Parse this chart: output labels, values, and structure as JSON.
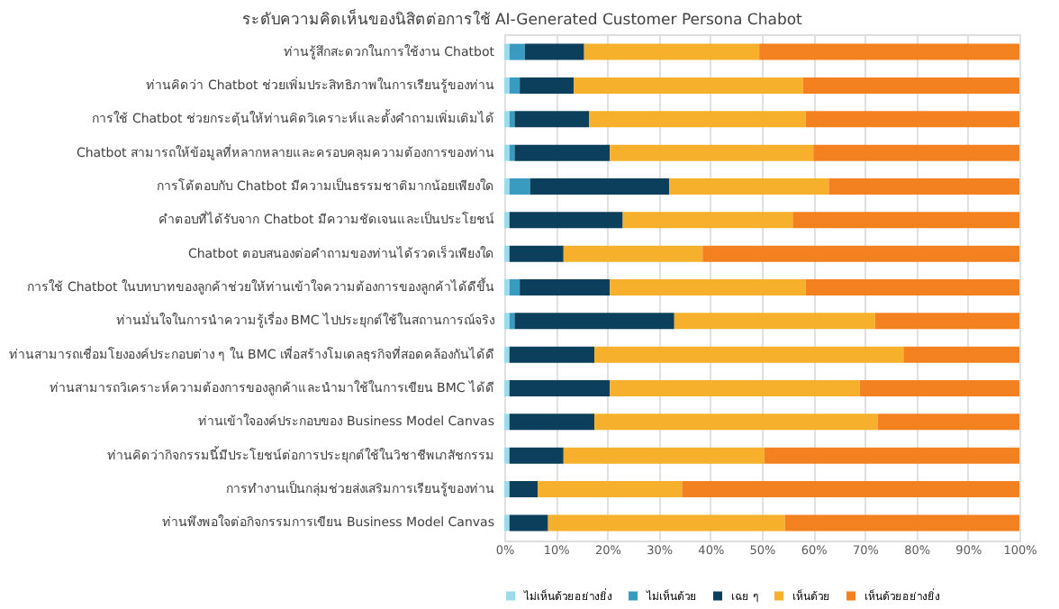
{
  "chart_data": {
    "type": "bar",
    "orientation": "horizontal",
    "stacked": true,
    "title": "ระดับความคิดเห็นของนิสิตต่อการใช้ AI-Generated Customer Persona Chabot",
    "categories": [
      "ท่านรู้สึกสะดวกในการใช้งาน Chatbot",
      "ท่านคิดว่า Chatbot ช่วยเพิ่มประสิทธิภาพในการเรียนรู้ของท่าน",
      "การใช้ Chatbot ช่วยกระตุ้นให้ท่านคิดวิเคราะห์และตั้งคำถามเพิ่มเติมได้",
      "Chatbot สามารถให้ข้อมูลที่หลากหลายและครอบคลุมความต้องการของท่าน",
      "การโต้ตอบกับ Chatbot มีความเป็นธรรมชาติมากน้อยเพียงใด",
      "คำตอบที่ได้รับจาก Chatbot มีความชัดเจนและเป็นประโยชน์",
      "Chatbot ตอบสนองต่อคำถามของท่านได้รวดเร็วเพียงใด",
      "การใช้ Chatbot ในบทบาทของลูกค้าช่วยให้ท่านเข้าใจความต้องการของลูกค้าได้ดีขึ้น",
      "ท่านมั่นใจในการนำความรู้เรื่อง BMC ไปประยุกต์ใช้ในสถานการณ์จริง",
      "ท่านสามารถเชื่อมโยงองค์ประกอบต่าง ๆ ใน BMC เพื่อสร้างโมเดลธุรกิจที่สอดคล้องกันได้ดี",
      "ท่านสามารถวิเคราะห์ความต้องการของลูกค้าและนำมาใช้ในการเขียน BMC ได้ดี",
      "ท่านเข้าใจองค์ประกอบของ Business Model Canvas",
      "ท่านคิดว่ากิจกรรมนี้มีประโยชน์ต่อการประยุกต์ใช้ในวิชาชีพเภสัชกรรม",
      "การทำงานเป็นกลุ่มช่วยส่งเสริมการเรียนรู้ของท่าน",
      "ท่านพึงพอใจต่อกิจกรรมการเขียน Business Model Canvas"
    ],
    "series": [
      {
        "name": "ไม่เห็นด้วยอย่างยิ่ง",
        "color": "#9bdcec",
        "values": [
          1,
          1,
          1,
          1,
          1,
          1,
          1,
          1,
          1,
          1,
          1,
          1,
          1,
          1,
          1
        ]
      },
      {
        "name": "ไม่เห็นด้วย",
        "color": "#3a9bc1",
        "values": [
          3,
          2,
          1,
          1,
          4,
          0,
          0,
          2,
          1,
          0,
          0,
          0,
          0,
          0,
          0
        ]
      },
      {
        "name": "เฉย ๆ",
        "color": "#0c3f5c",
        "values": [
          11.5,
          10.5,
          14.5,
          18.5,
          27,
          22,
          10.5,
          17.5,
          31,
          16.5,
          19.5,
          16.5,
          10.5,
          5.5,
          7.5
        ]
      },
      {
        "name": "เห็นด้วย",
        "color": "#f7b02b",
        "values": [
          34,
          44.5,
          42,
          39.5,
          31,
          33,
          27,
          38,
          39,
          60,
          48.5,
          55,
          39,
          28,
          46
        ]
      },
      {
        "name": "เห็นด้วยอย่างยิ่ง",
        "color": "#f4811f",
        "values": [
          50.5,
          42,
          41.5,
          40,
          37,
          44,
          61.5,
          41.5,
          28,
          22.5,
          31,
          27.5,
          49.5,
          65.5,
          45.5
        ]
      }
    ],
    "xlim": [
      0,
      100
    ],
    "xticks": [
      {
        "value": 0,
        "label": "0%"
      },
      {
        "value": 10,
        "label": "10%"
      },
      {
        "value": 20,
        "label": "20%"
      },
      {
        "value": 30,
        "label": "30%"
      },
      {
        "value": 40,
        "label": "40%"
      },
      {
        "value": 50,
        "label": "50%"
      },
      {
        "value": 60,
        "label": "60%"
      },
      {
        "value": 70,
        "label": "70%"
      },
      {
        "value": 80,
        "label": "80%"
      },
      {
        "value": 90,
        "label": "90%"
      },
      {
        "value": 100,
        "label": "100%"
      }
    ],
    "grid": "x",
    "legend": "bottom"
  }
}
